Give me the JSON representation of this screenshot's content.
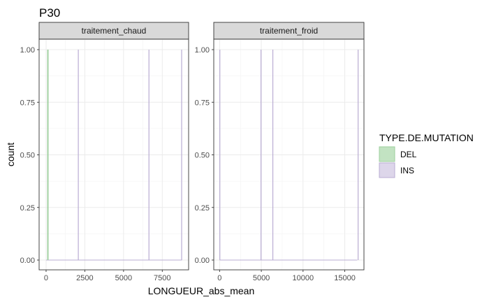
{
  "chart_data": {
    "type": "bar",
    "title": "P30",
    "xlabel": "LONGUEUR_abs_mean",
    "ylabel": "count",
    "ylim": [
      0,
      1
    ],
    "y_ticks": [
      "0.00",
      "0.25",
      "0.50",
      "0.75",
      "1.00"
    ],
    "legend": {
      "title": "TYPE.DE.MUTATION",
      "placement": "right",
      "entries": [
        {
          "name": "DEL",
          "fill": "#c2e3c2",
          "stroke": "#9dcf9d"
        },
        {
          "name": "INS",
          "fill": "#ddd6ea",
          "stroke": "#b9acd3"
        }
      ]
    },
    "panels": [
      {
        "label": "traitement_chaud",
        "xlim": [
          -450,
          9200
        ],
        "x_ticks": [
          0,
          2500,
          5000,
          7500
        ],
        "x_tick_labels": [
          "0",
          "2500",
          "5000",
          "7500"
        ],
        "series": [
          {
            "name": "DEL",
            "x": [
              100,
              130
            ],
            "count": [
              1,
              1
            ]
          },
          {
            "name": "INS",
            "x": [
              2080,
              6640,
              8750
            ],
            "count": [
              1,
              1,
              1
            ]
          }
        ]
      },
      {
        "label": "traitement_froid",
        "xlim": [
          -700,
          17300
        ],
        "x_ticks": [
          0,
          5000,
          10000,
          15000
        ],
        "x_tick_labels": [
          "0",
          "5000",
          "10000",
          "15000"
        ],
        "series": [
          {
            "name": "DEL",
            "x": [],
            "count": []
          },
          {
            "name": "INS",
            "x": [
              30,
              4960,
              6380,
              16600
            ],
            "count": [
              1,
              1,
              1,
              1
            ]
          }
        ]
      }
    ]
  }
}
